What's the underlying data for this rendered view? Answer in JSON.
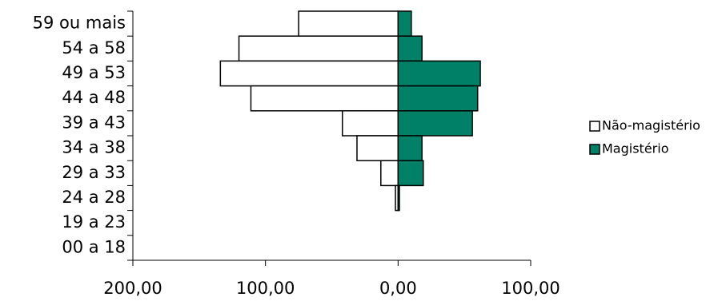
{
  "chart_data": {
    "type": "bar",
    "orientation": "horizontal",
    "categories": [
      "59 ou mais",
      "54 a 58",
      "49 a 53",
      "44 a 48",
      "39 a 43",
      "34 a 38",
      "29 a 33",
      "24 a 28",
      "19 a 23",
      "00 a 18"
    ],
    "series": [
      {
        "name": "Não-magistério",
        "color": "#ffffff",
        "values": [
          -75,
          -120,
          -134,
          -111,
          -42,
          -31,
          -13,
          -2,
          0,
          0
        ]
      },
      {
        "name": "Magistério",
        "color": "#008066",
        "values": [
          10,
          18,
          62,
          60,
          56,
          18,
          19,
          1,
          0,
          0
        ]
      }
    ],
    "xlim": [
      -200,
      100
    ],
    "xticks": [
      {
        "value": -200,
        "label": "200,00"
      },
      {
        "value": -100,
        "label": "100,00"
      },
      {
        "value": 0,
        "label": "0,00"
      },
      {
        "value": 100,
        "label": "100,00"
      }
    ],
    "legend": "right"
  }
}
